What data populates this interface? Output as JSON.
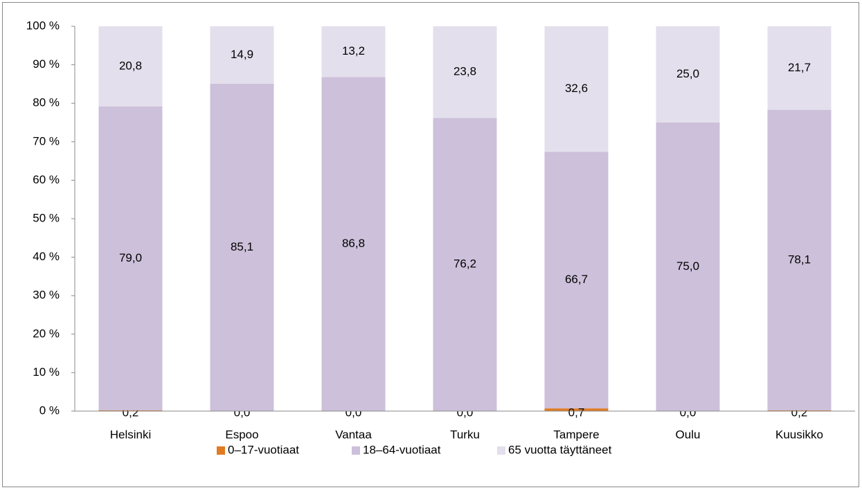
{
  "chart_data": {
    "type": "stacked_bar",
    "categories": [
      "Helsinki",
      "Espoo",
      "Vantaa",
      "Turku",
      "Tampere",
      "Oulu",
      "Kuusikko"
    ],
    "series": [
      {
        "name": "0–17-vuotiaat",
        "color": "#e07b22",
        "values": [
          0.2,
          0.0,
          0.0,
          0.0,
          0.7,
          0.0,
          0.2
        ],
        "value_labels": [
          "0,2",
          "0,0",
          "0,0",
          "0,0",
          "0,7",
          "0,0",
          "0,2"
        ]
      },
      {
        "name": "18–64-vuotiaat",
        "color": "#ccc0da",
        "values": [
          79.0,
          85.1,
          86.8,
          76.2,
          66.7,
          75.0,
          78.1
        ],
        "value_labels": [
          "79,0",
          "85,1",
          "86,8",
          "76,2",
          "66,7",
          "75,0",
          "78,1"
        ]
      },
      {
        "name": "65 vuotta täyttäneet",
        "color": "#e4dfec",
        "values": [
          20.8,
          14.9,
          13.2,
          23.8,
          32.6,
          25.0,
          21.7
        ],
        "value_labels": [
          "20,8",
          "14,9",
          "13,2",
          "23,8",
          "32,6",
          "25,0",
          "21,7"
        ]
      }
    ],
    "ylim": [
      0,
      100
    ],
    "yticks": [
      {
        "value": 0,
        "label": "0 %"
      },
      {
        "value": 10,
        "label": "10 %"
      },
      {
        "value": 20,
        "label": "20 %"
      },
      {
        "value": 30,
        "label": "30 %"
      },
      {
        "value": 40,
        "label": "40 %"
      },
      {
        "value": 50,
        "label": "50 %"
      },
      {
        "value": 60,
        "label": "60 %"
      },
      {
        "value": 70,
        "label": "70 %"
      },
      {
        "value": 80,
        "label": "80 %"
      },
      {
        "value": 90,
        "label": "90 %"
      },
      {
        "value": 100,
        "label": "100 %"
      }
    ],
    "legend": "bottom"
  }
}
